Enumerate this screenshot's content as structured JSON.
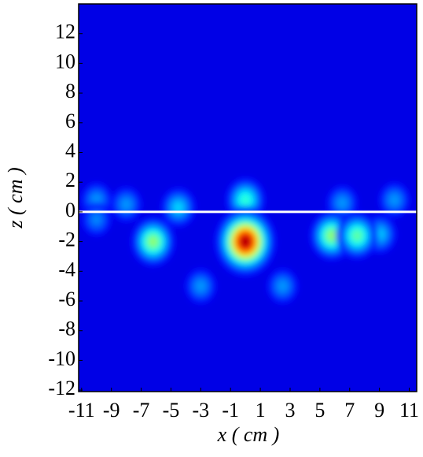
{
  "chart_data": {
    "type": "heatmap",
    "xlabel": "x ( cm )",
    "ylabel": "z ( cm )",
    "xlim": [
      -11.2,
      11.5
    ],
    "ylim": [
      -12.1,
      14
    ],
    "xticks": [
      -11,
      -9,
      -7,
      -5,
      -3,
      -1,
      1,
      3,
      5,
      7,
      9,
      11
    ],
    "yticks": [
      -12,
      -10,
      -8,
      -6,
      -4,
      -2,
      0,
      2,
      4,
      6,
      8,
      10,
      12
    ],
    "hline": 0,
    "hline_color": "#ffffff",
    "colormap": "jet",
    "base_value": 0.1,
    "spots": [
      {
        "x": -10,
        "z": 0.8,
        "value": 0.3
      },
      {
        "x": -8,
        "z": 0.5,
        "value": 0.3
      },
      {
        "x": -10,
        "z": -0.5,
        "value": 0.28
      },
      {
        "x": 10,
        "z": 0.8,
        "value": 0.3
      },
      {
        "x": 6.5,
        "z": 0.6,
        "value": 0.3
      },
      {
        "x": -4.5,
        "z": 0.3,
        "value": 0.36
      },
      {
        "x": 0,
        "z": 0.8,
        "value": 0.45
      },
      {
        "x": -3,
        "z": -5,
        "value": 0.3
      },
      {
        "x": 2.5,
        "z": -5,
        "value": 0.3
      },
      {
        "x": 9,
        "z": -1.5,
        "value": 0.35
      },
      {
        "x": -6.2,
        "z": -2,
        "value": 0.55
      },
      {
        "x": 5.8,
        "z": -1.6,
        "value": 0.55
      },
      {
        "x": 7.5,
        "z": -1.6,
        "value": 0.5
      },
      {
        "x": 0,
        "z": -2,
        "value": 1.0
      }
    ]
  }
}
